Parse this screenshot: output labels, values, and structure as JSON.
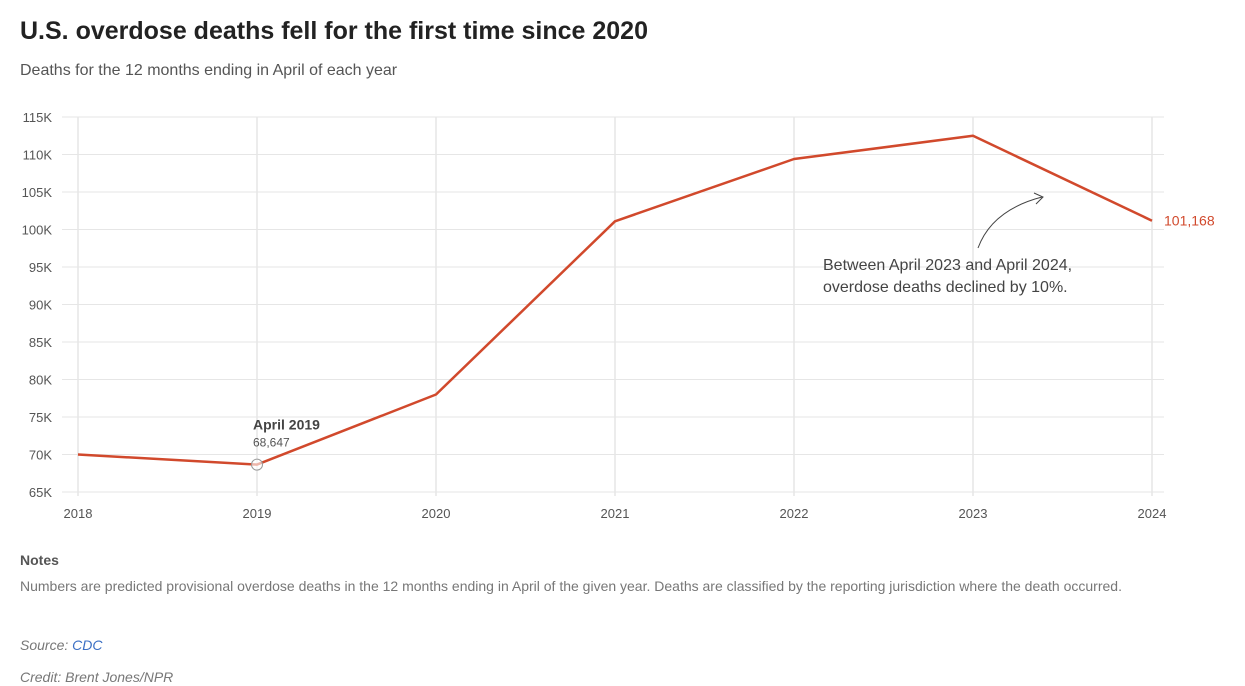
{
  "title": "U.S. overdose deaths fell for the first time since 2020",
  "subtitle": "Deaths for the 12 months ending in April of each year",
  "colors": {
    "line": "#d1492c",
    "grid": "#e6e6e6",
    "axis_text": "#555555",
    "label_accent": "#d1492c"
  },
  "chart_data": {
    "type": "line",
    "x": [
      "2018",
      "2019",
      "2020",
      "2021",
      "2022",
      "2023",
      "2024"
    ],
    "series": [
      {
        "values": [
          70000,
          68647,
          78000,
          101100,
          109400,
          112500,
          101168
        ]
      }
    ],
    "ylim": [
      65000,
      115000
    ],
    "yticks": [
      65000,
      70000,
      75000,
      80000,
      85000,
      90000,
      95000,
      100000,
      105000,
      110000,
      115000
    ],
    "ytick_labels": [
      "65K",
      "70K",
      "75K",
      "80K",
      "85K",
      "90K",
      "95K",
      "100K",
      "105K",
      "110K",
      "115K"
    ],
    "xlabel": "",
    "ylabel": "",
    "grid": true,
    "end_label": "101,168",
    "highlight": {
      "title": "April 2019",
      "value_label": "68,647",
      "x": "2019"
    },
    "annotation": {
      "lines": [
        "Between April 2023 and April 2024,",
        "overdose deaths declined by 10%."
      ],
      "points_to": "2023.5"
    }
  },
  "notes": {
    "heading": "Notes",
    "text": "Numbers are predicted provisional overdose deaths in the 12 months ending in April of the given year. Deaths are classified by the reporting jurisdiction where the death occurred."
  },
  "source": {
    "label": "Source:",
    "link_text": "CDC"
  },
  "credit": "Credit: Brent Jones/NPR"
}
